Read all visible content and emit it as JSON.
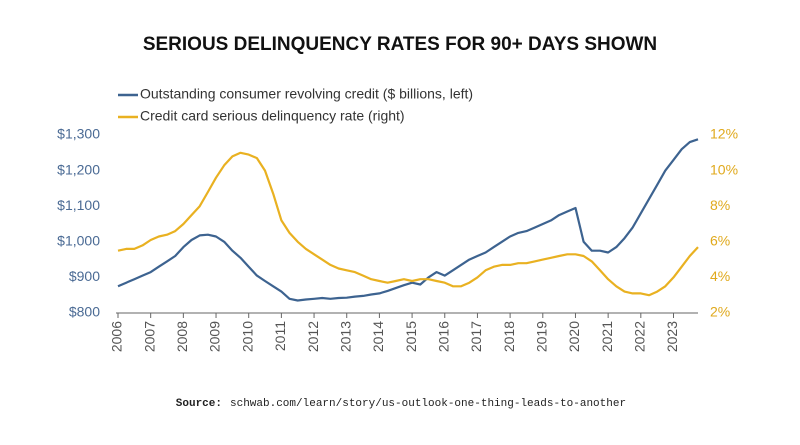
{
  "chart_data": {
    "type": "line",
    "title": "SERIOUS DELINQUENCY RATES FOR 90+ DAYS SHOWN",
    "source_label": "Source:",
    "source": "schwab.com/learn/story/us-outlook-one-thing-leads-to-another",
    "x": [
      2006,
      2006.25,
      2006.5,
      2006.75,
      2007,
      2007.25,
      2007.5,
      2007.75,
      2008,
      2008.25,
      2008.5,
      2008.75,
      2009,
      2009.25,
      2009.5,
      2009.75,
      2010,
      2010.25,
      2010.5,
      2010.75,
      2011,
      2011.25,
      2011.5,
      2011.75,
      2012,
      2012.25,
      2012.5,
      2012.75,
      2013,
      2013.25,
      2013.5,
      2013.75,
      2014,
      2014.25,
      2014.5,
      2014.75,
      2015,
      2015.25,
      2015.5,
      2015.75,
      2016,
      2016.25,
      2016.5,
      2016.75,
      2017,
      2017.25,
      2017.5,
      2017.75,
      2018,
      2018.25,
      2018.5,
      2018.75,
      2019,
      2019.25,
      2019.5,
      2019.75,
      2020,
      2020.25,
      2020.5,
      2020.75,
      2021,
      2021.25,
      2021.5,
      2021.75,
      2022,
      2022.25,
      2022.5,
      2022.75,
      2023,
      2023.25,
      2023.5,
      2023.75
    ],
    "series": [
      {
        "name": "Outstanding consumer revolving credit ($ billions, left)",
        "color": "#3d6390",
        "axis": "y",
        "values": [
          875,
          885,
          895,
          905,
          915,
          930,
          945,
          960,
          985,
          1005,
          1018,
          1020,
          1015,
          1000,
          975,
          955,
          930,
          905,
          890,
          875,
          860,
          840,
          835,
          838,
          840,
          842,
          840,
          842,
          843,
          846,
          848,
          852,
          855,
          862,
          870,
          878,
          885,
          880,
          900,
          915,
          905,
          920,
          935,
          950,
          960,
          970,
          985,
          1000,
          1015,
          1025,
          1030,
          1040,
          1050,
          1060,
          1075,
          1085,
          1095,
          1000,
          975,
          975,
          970,
          985,
          1010,
          1040,
          1080,
          1120,
          1160,
          1200,
          1230,
          1260,
          1280,
          1288
        ]
      },
      {
        "name": "Credit card serious delinquency rate (right)",
        "color": "#e9b121",
        "axis": "y2",
        "values": [
          5.5,
          5.6,
          5.6,
          5.8,
          6.1,
          6.3,
          6.4,
          6.6,
          7.0,
          7.5,
          8.0,
          8.8,
          9.6,
          10.3,
          10.8,
          11.0,
          10.9,
          10.7,
          10.0,
          8.7,
          7.2,
          6.5,
          6.0,
          5.6,
          5.3,
          5.0,
          4.7,
          4.5,
          4.4,
          4.3,
          4.1,
          3.9,
          3.8,
          3.7,
          3.8,
          3.9,
          3.8,
          3.9,
          3.9,
          3.8,
          3.7,
          3.5,
          3.5,
          3.7,
          4.0,
          4.4,
          4.6,
          4.7,
          4.7,
          4.8,
          4.8,
          4.9,
          5.0,
          5.1,
          5.2,
          5.3,
          5.3,
          5.2,
          4.9,
          4.4,
          3.9,
          3.5,
          3.2,
          3.1,
          3.1,
          3.0,
          3.2,
          3.5,
          4.0,
          4.6,
          5.2,
          5.7
        ]
      }
    ],
    "xlim": [
      2006,
      2023.75
    ],
    "xticks": [
      2006,
      2007,
      2008,
      2009,
      2010,
      2011,
      2012,
      2013,
      2014,
      2015,
      2016,
      2017,
      2018,
      2019,
      2020,
      2021,
      2022,
      2023
    ],
    "ylim": [
      800,
      1300
    ],
    "yticks": [
      {
        "value": 800,
        "label": "$800"
      },
      {
        "value": 900,
        "label": "$900"
      },
      {
        "value": 1000,
        "label": "$1,000"
      },
      {
        "value": 1100,
        "label": "$1,100"
      },
      {
        "value": 1200,
        "label": "$1,200"
      },
      {
        "value": 1300,
        "label": "$1,300"
      }
    ],
    "y2lim": [
      2,
      12
    ],
    "y2ticks": [
      {
        "value": 2,
        "label": "2%"
      },
      {
        "value": 4,
        "label": "4%"
      },
      {
        "value": 6,
        "label": "6%"
      },
      {
        "value": 8,
        "label": "8%"
      },
      {
        "value": 10,
        "label": "10%"
      },
      {
        "value": 12,
        "label": "12%"
      }
    ],
    "y_color": "#4a6a94",
    "y2_color": "#e0a91c"
  }
}
